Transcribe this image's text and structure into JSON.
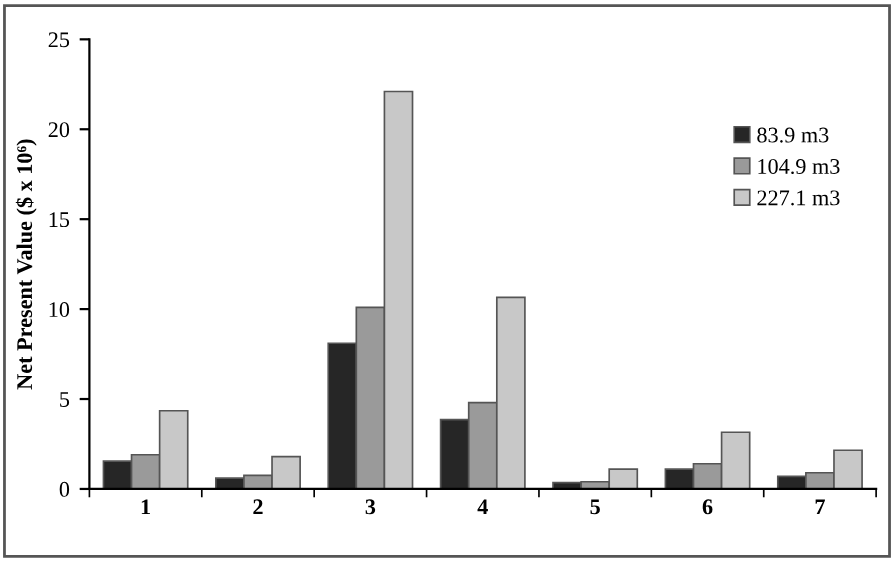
{
  "chart_data": {
    "type": "bar",
    "ylabel": "Net Present Value ($ x 10⁶)",
    "categories": [
      "1",
      "2",
      "3",
      "4",
      "5",
      "6",
      "7"
    ],
    "series": [
      {
        "name": "83.9 m3",
        "color": "#262626",
        "values": [
          1.55,
          0.6,
          8.1,
          3.85,
          0.35,
          1.1,
          0.7
        ]
      },
      {
        "name": "104.9 m3",
        "color": "#9a9a9a",
        "values": [
          1.9,
          0.75,
          10.1,
          4.8,
          0.4,
          1.4,
          0.9
        ]
      },
      {
        "name": "227.1 m3",
        "color": "#c8c8c8",
        "values": [
          4.35,
          1.8,
          22.1,
          10.65,
          1.1,
          3.15,
          2.15
        ]
      }
    ],
    "ylim": [
      0,
      25
    ],
    "yticks": [
      0,
      5,
      10,
      15,
      20,
      25
    ],
    "grid": false,
    "legend": "top right"
  }
}
